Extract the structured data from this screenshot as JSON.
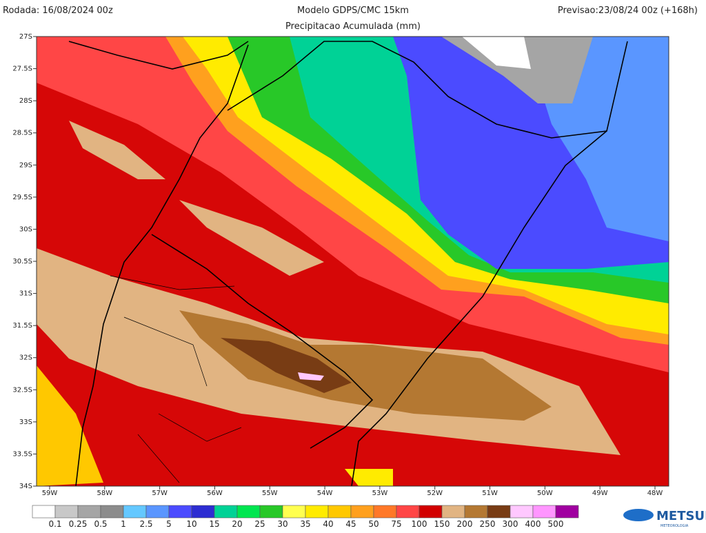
{
  "header": {
    "run": "Rodada: 16/08/2024 00z",
    "model": "Modelo GDPS/CMC 15km",
    "field": "Precipitacao Acumulada (mm)",
    "forecast": "Previsao:23/08/24 00z (+168h)"
  },
  "map": {
    "lat_labels": [
      "27S",
      "27.5S",
      "28S",
      "28.5S",
      "29S",
      "29.5S",
      "30S",
      "30.5S",
      "31S",
      "31.5S",
      "32S",
      "32.5S",
      "33S",
      "33.5S",
      "34S"
    ],
    "lon_labels": [
      "59W",
      "58W",
      "57W",
      "56W",
      "55W",
      "54W",
      "53W",
      "52W",
      "51W",
      "50W",
      "49W",
      "48W"
    ]
  },
  "legend": {
    "colors": [
      "#ffffff",
      "#c8c8c8",
      "#a5a5a5",
      "#8c8c8c",
      "#64c8ff",
      "#5a96ff",
      "#4b4bff",
      "#2d2dd2",
      "#00d296",
      "#00e650",
      "#28c828",
      "#ffff50",
      "#ffeb00",
      "#ffc800",
      "#ffa01e",
      "#ff7828",
      "#ff4646",
      "#d20000",
      "#e1b482",
      "#b47832",
      "#783c14",
      "#ffc8ff",
      "#ff96ff",
      "#a000a0"
    ],
    "labels": [
      0.1,
      0.25,
      0.5,
      1,
      2.5,
      5,
      10,
      15,
      20,
      25,
      30,
      35,
      40,
      45,
      50,
      75,
      100,
      150,
      200,
      250,
      300,
      400,
      500
    ]
  },
  "logo": {
    "name": "METSUL",
    "tagline": "METEOROLOGIA"
  }
}
